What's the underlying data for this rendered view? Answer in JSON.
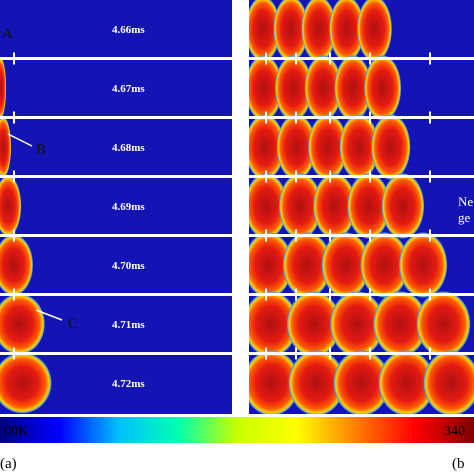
{
  "frames": [
    {
      "time": "4.66ms",
      "left_progress": 0.0,
      "right_progress": 0.62
    },
    {
      "time": "4.67ms",
      "left_progress": 0.01,
      "right_progress": 0.66
    },
    {
      "time": "4.68ms",
      "left_progress": 0.04,
      "right_progress": 0.7
    },
    {
      "time": "4.69ms",
      "left_progress": 0.1,
      "right_progress": 0.76
    },
    {
      "time": "4.70ms",
      "left_progress": 0.17,
      "right_progress": 0.86
    },
    {
      "time": "4.71ms",
      "left_progress": 0.24,
      "right_progress": 0.96
    },
    {
      "time": "4.72ms",
      "left_progress": 0.28,
      "right_progress": 1.0
    }
  ],
  "annotations": {
    "a": "A",
    "b": "B",
    "c": "C",
    "right_line1": "Ne",
    "right_line2": "ge"
  },
  "colorbar": {
    "min_label": "00K",
    "max_label": "340",
    "colors": [
      "#000080",
      "#0000ff",
      "#00bfff",
      "#00ffb0",
      "#c8ff00",
      "#ffff00",
      "#ff8000",
      "#ff0000",
      "#800000"
    ]
  },
  "panels": {
    "left_tag": "(a)",
    "right_tag": "(b"
  },
  "colors": {
    "background_field": "#1414b4",
    "hot_core": "#c81e1e",
    "flame_front": "#ff6a00",
    "separator": "#ffffff"
  }
}
